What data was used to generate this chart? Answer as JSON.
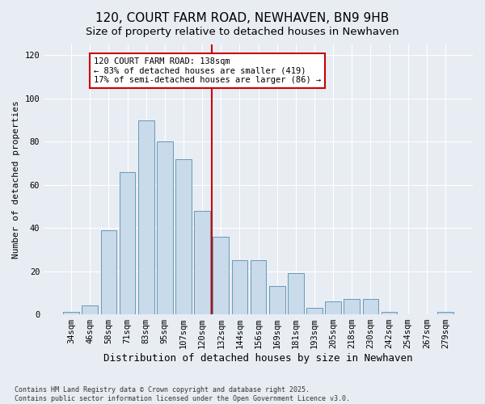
{
  "title": "120, COURT FARM ROAD, NEWHAVEN, BN9 9HB",
  "subtitle": "Size of property relative to detached houses in Newhaven",
  "xlabel": "Distribution of detached houses by size in Newhaven",
  "ylabel": "Number of detached properties",
  "bar_labels": [
    "34sqm",
    "46sqm",
    "58sqm",
    "71sqm",
    "83sqm",
    "95sqm",
    "107sqm",
    "120sqm",
    "132sqm",
    "144sqm",
    "156sqm",
    "169sqm",
    "181sqm",
    "193sqm",
    "205sqm",
    "218sqm",
    "230sqm",
    "242sqm",
    "254sqm",
    "267sqm",
    "279sqm"
  ],
  "bar_values": [
    1,
    4,
    39,
    66,
    90,
    80,
    72,
    48,
    36,
    25,
    25,
    13,
    19,
    3,
    6,
    7,
    7,
    1,
    0,
    0,
    1
  ],
  "bar_color": "#c9daea",
  "bar_edge_color": "#6699bb",
  "vline_color": "#cc0000",
  "annotation_text": "120 COURT FARM ROAD: 138sqm\n← 83% of detached houses are smaller (419)\n17% of semi-detached houses are larger (86) →",
  "annotation_box_color": "#ffffff",
  "annotation_box_edge": "#cc0000",
  "bg_color": "#e8edf3",
  "plot_bg_color": "#e8edf3",
  "yticks": [
    0,
    20,
    40,
    60,
    80,
    100,
    120
  ],
  "ylim": [
    0,
    125
  ],
  "footer": "Contains HM Land Registry data © Crown copyright and database right 2025.\nContains public sector information licensed under the Open Government Licence v3.0.",
  "title_fontsize": 11,
  "subtitle_fontsize": 9.5,
  "xlabel_fontsize": 9,
  "ylabel_fontsize": 8,
  "tick_fontsize": 7.5,
  "annotation_fontsize": 7.5,
  "footer_fontsize": 6
}
